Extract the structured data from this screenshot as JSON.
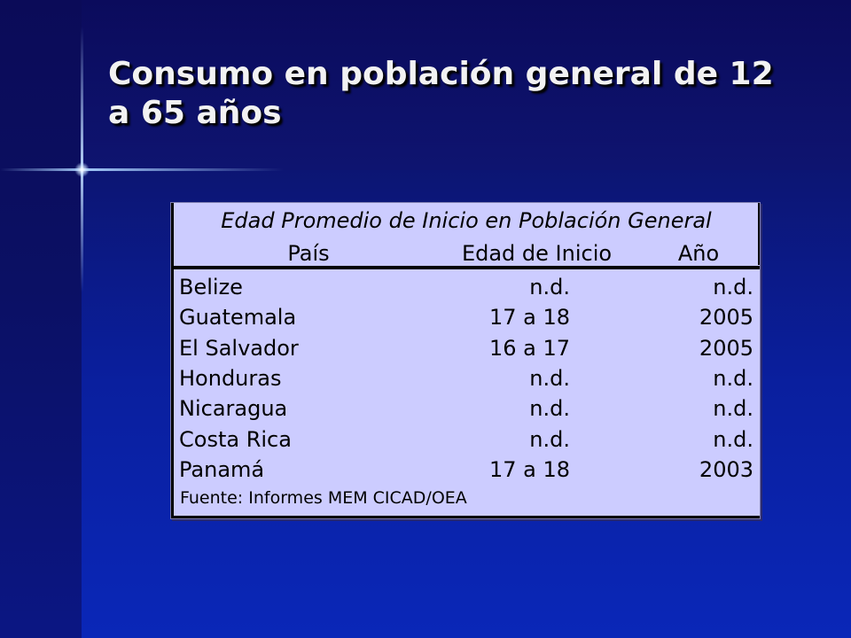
{
  "slide": {
    "title": "Consumo en población general de 12 a 65 años"
  },
  "table": {
    "caption": "Edad Promedio de Inicio en Población General",
    "headers": [
      "País",
      "Edad de Inicio",
      "Año"
    ],
    "rows": [
      [
        "Belize",
        "n.d.",
        "n.d."
      ],
      [
        "Guatemala",
        "17 a 18",
        "2005"
      ],
      [
        "El Salvador",
        "16 a 17",
        "2005"
      ],
      [
        "Honduras",
        "n.d.",
        "n.d."
      ],
      [
        "Nicaragua",
        "n.d.",
        "n.d."
      ],
      [
        "Costa Rica",
        "n.d.",
        "n.d."
      ],
      [
        "Panamá",
        "17 a 18",
        "2003"
      ]
    ],
    "source": "Fuente: Informes MEM CICAD/OEA"
  },
  "colors": {
    "background": "#0a1f9e",
    "table_fill": "#ccccff",
    "title_text": "#f2f2f2"
  }
}
